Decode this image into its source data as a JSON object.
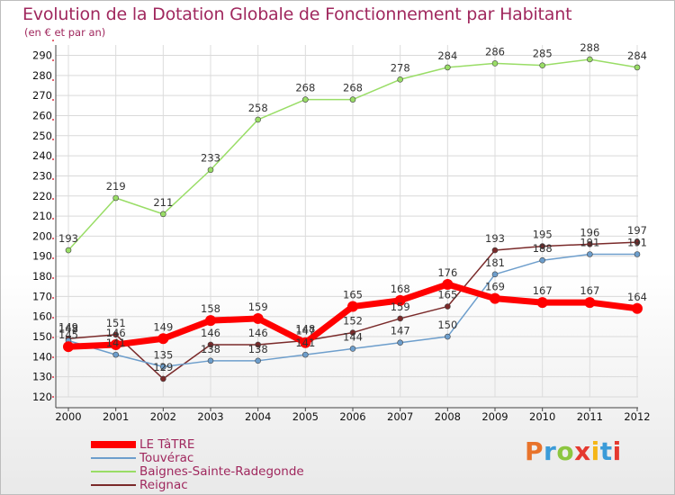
{
  "title": "Evolution de la Dotation Globale de Fonctionnement par Habitant",
  "subtitle": "(en € et par an)",
  "logo": {
    "text": "Proxiti",
    "colors": [
      "#e8732b",
      "#3b9bd8",
      "#8cc63f",
      "#e5392f",
      "#f5b618",
      "#3b9bd8",
      "#e5392f"
    ]
  },
  "chart_data": {
    "type": "line",
    "title": "Evolution de la Dotation Globale de Fonctionnement par Habitant",
    "subtitle": "(en € et par an)",
    "x": [
      "2000",
      "2001",
      "2002",
      "2003",
      "2004",
      "2005",
      "2006",
      "2007",
      "2008",
      "2009",
      "2010",
      "2011",
      "2012"
    ],
    "ylim": [
      120,
      290
    ],
    "yticks": [
      "120",
      "130",
      "140",
      "150",
      "160",
      "170",
      "180",
      "190",
      "200",
      "210",
      "220",
      "230",
      "240",
      "250",
      "260",
      "270",
      "280",
      "290"
    ],
    "grid": true,
    "legend_position": "bottom-left",
    "series": [
      {
        "name": "LE TâTRE",
        "color": "#ff0000",
        "width": 7,
        "marker": 6,
        "values": [
          145,
          146,
          149,
          158,
          159,
          147,
          165,
          168,
          176,
          169,
          167,
          167,
          164
        ],
        "labels": [
          "145",
          "146",
          "149",
          "158",
          "159",
          "147",
          "165",
          "168",
          "176",
          "169",
          "167",
          "167",
          "164"
        ]
      },
      {
        "name": "Touvérac",
        "color": "#6d9ecc",
        "width": 1.5,
        "marker": 3,
        "values": [
          148,
          141,
          135,
          138,
          138,
          141,
          144,
          147,
          150,
          181,
          188,
          191,
          191
        ],
        "labels": [
          "148",
          "141",
          "135",
          "138",
          "138",
          "141",
          "144",
          "147",
          "150",
          "181",
          "188",
          "191",
          "191"
        ]
      },
      {
        "name": "Baignes-Sainte-Radegonde",
        "color": "#99dd66",
        "width": 1.5,
        "marker": 3,
        "values": [
          193,
          219,
          211,
          233,
          258,
          268,
          268,
          278,
          284,
          286,
          285,
          288,
          284
        ],
        "labels": [
          "193",
          "219",
          "211",
          "233",
          "258",
          "268",
          "268",
          "278",
          "284",
          "286",
          "285",
          "288",
          "284"
        ]
      },
      {
        "name": "Reignac",
        "color": "#7a2a2a",
        "width": 1.5,
        "marker": 3,
        "values": [
          149,
          151,
          129,
          146,
          146,
          148,
          152,
          159,
          165,
          193,
          195,
          196,
          197
        ],
        "labels": [
          "149",
          "151",
          "129",
          "146",
          "146",
          "148",
          "152",
          "159",
          "165",
          "193",
          "195",
          "196",
          "197"
        ]
      }
    ]
  }
}
